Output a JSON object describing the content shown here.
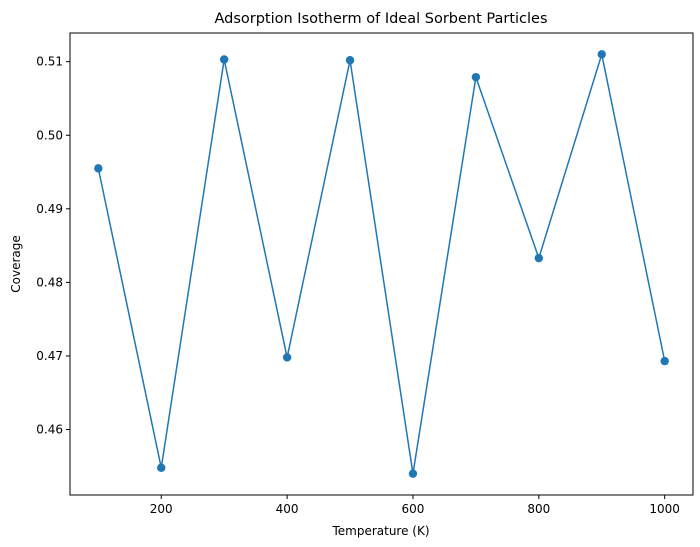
{
  "chart_data": {
    "type": "line",
    "title": "Adsorption Isotherm of Ideal Sorbent Particles",
    "xlabel": "Temperature (K)",
    "ylabel": "Coverage",
    "x": [
      100,
      200,
      300,
      400,
      500,
      600,
      700,
      800,
      900,
      1000
    ],
    "series": [
      {
        "values": [
          0.4955,
          0.4548,
          0.5103,
          0.4698,
          0.5102,
          0.454,
          0.5079,
          0.4833,
          0.511,
          0.4693
        ]
      }
    ],
    "xlim": [
      55,
      1045
    ],
    "ylim": [
      0.4511,
      0.5139
    ],
    "xticks": [
      200,
      400,
      600,
      800,
      1000
    ],
    "xtick_labels": [
      "200",
      "400",
      "600",
      "800",
      "1000"
    ],
    "yticks": [
      0.46,
      0.47,
      0.48,
      0.49,
      0.5,
      0.51
    ],
    "ytick_labels": [
      "0.46",
      "0.47",
      "0.48",
      "0.49",
      "0.50",
      "0.51"
    ],
    "grid": false,
    "markers": true,
    "colors": {
      "line": "#1f77b4",
      "axes": "#000000"
    }
  }
}
